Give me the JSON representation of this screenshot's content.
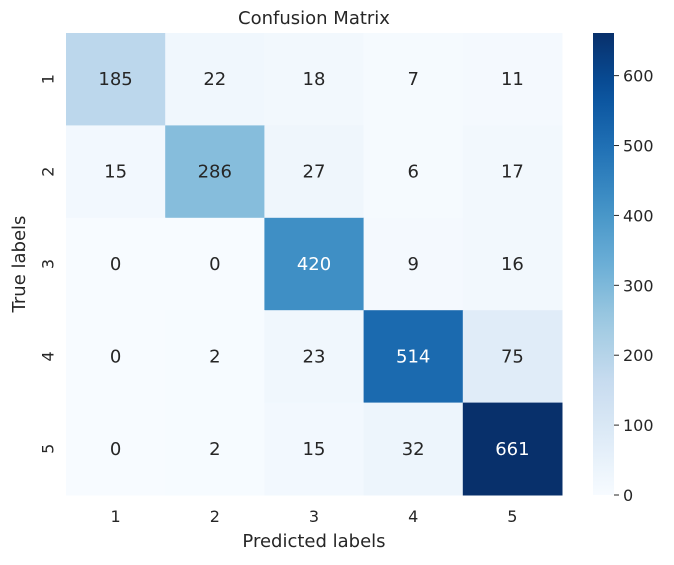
{
  "chart_data": {
    "type": "heatmap",
    "title": "Confusion Matrix",
    "xlabel": "Predicted labels",
    "ylabel": "True labels",
    "x_categories": [
      "1",
      "2",
      "3",
      "4",
      "5"
    ],
    "y_categories": [
      "1",
      "2",
      "3",
      "4",
      "5"
    ],
    "values": [
      [
        185,
        22,
        18,
        7,
        11
      ],
      [
        15,
        286,
        27,
        6,
        17
      ],
      [
        0,
        0,
        420,
        9,
        16
      ],
      [
        0,
        2,
        23,
        514,
        75
      ],
      [
        0,
        2,
        15,
        32,
        661
      ]
    ],
    "colormap": "Blues",
    "colorbar": {
      "vmin": 0,
      "vmax": 661,
      "ticks": [
        0,
        100,
        200,
        300,
        400,
        500,
        600
      ],
      "tick_labels": [
        "0",
        "100",
        "200",
        "300",
        "400",
        "500",
        "600"
      ]
    },
    "annotation_colors": {
      "dark_text": "#262626",
      "light_text": "#ffffff"
    }
  }
}
